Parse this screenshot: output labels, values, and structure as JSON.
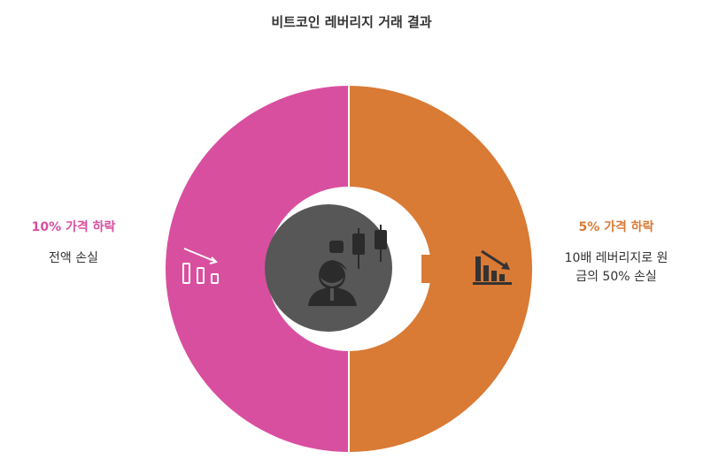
{
  "title": "비트코인 레버리지 거래 결과",
  "left": {
    "heading": "10% 가격 하락",
    "text": "전액 손실",
    "color": "#D94FA0",
    "icon": "declining-bars-outline-icon"
  },
  "right": {
    "heading": "5% 가격 하락",
    "text_line1": "10배 레버리지로 원",
    "text_line2": "금의 50% 손실",
    "color": "#D97A35",
    "icon": "declining-bars-filled-icon"
  },
  "center": {
    "color": "#575757",
    "icon": "trader-with-candlestick-chart-icon"
  }
}
